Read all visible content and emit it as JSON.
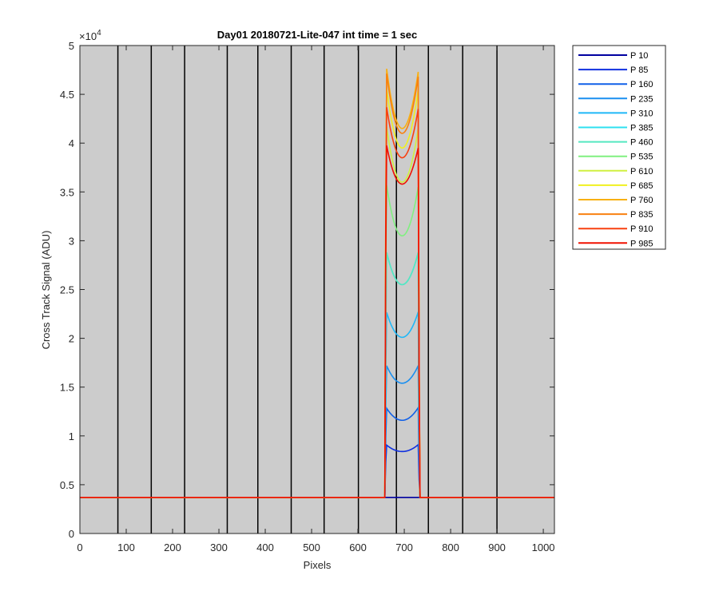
{
  "chart_data": {
    "type": "line",
    "title": "Day01 20180721-Lite-047 int time = 1 sec",
    "xlabel": "Pixels",
    "ylabel": "Cross Track Signal (ADU)",
    "exponent_label": "×10",
    "exponent_power": "4",
    "xlim": [
      0,
      1024
    ],
    "ylim": [
      0,
      50000
    ],
    "xticks": [
      0,
      100,
      200,
      300,
      400,
      500,
      600,
      700,
      800,
      900,
      1000
    ],
    "yticks": [
      0,
      5000,
      10000,
      15000,
      20000,
      25000,
      30000,
      35000,
      40000,
      45000,
      50000
    ],
    "ytick_labels": [
      "0",
      "0.5",
      "1",
      "1.5",
      "2",
      "2.5",
      "3",
      "3.5",
      "4",
      "4.5",
      "5"
    ],
    "vertical_lines_x": [
      82,
      154,
      226,
      318,
      384,
      456,
      527,
      601,
      683,
      752,
      826,
      900
    ],
    "background": "#cccccc",
    "legend_position": "outside-right",
    "baseline": 3700,
    "feature_x_range": [
      661,
      730
    ],
    "series": [
      {
        "name": "P 10",
        "color": "#0000a0",
        "left_peak": 3700,
        "dip": 3700,
        "right_peak": 3700
      },
      {
        "name": "P 85",
        "color": "#1030e0",
        "left_peak": 9100,
        "dip": 8400,
        "right_peak": 9100
      },
      {
        "name": "P 160",
        "color": "#1060e8",
        "left_peak": 12900,
        "dip": 11600,
        "right_peak": 12900
      },
      {
        "name": "P 235",
        "color": "#1a8ff0",
        "left_peak": 17300,
        "dip": 15400,
        "right_peak": 17200
      },
      {
        "name": "P 310",
        "color": "#1fb8f8",
        "left_peak": 22800,
        "dip": 20100,
        "right_peak": 22700
      },
      {
        "name": "P 385",
        "color": "#2ee0f0",
        "left_peak": 29000,
        "dip": 25500,
        "right_peak": 28800
      },
      {
        "name": "P 460",
        "color": "#55e8c0",
        "left_peak": 29000,
        "dip": 25500,
        "right_peak": 28800
      },
      {
        "name": "P 535",
        "color": "#80f080",
        "left_peak": 36000,
        "dip": 30500,
        "right_peak": 35500
      },
      {
        "name": "P 610",
        "color": "#d0f040",
        "left_peak": 42000,
        "dip": 36000,
        "right_peak": 41500
      },
      {
        "name": "P 685",
        "color": "#f0f020",
        "left_peak": 46000,
        "dip": 39500,
        "right_peak": 45500
      },
      {
        "name": "P 760",
        "color": "#f8b010",
        "left_peak": 48000,
        "dip": 41500,
        "right_peak": 47300
      },
      {
        "name": "P 835",
        "color": "#f88010",
        "left_peak": 47500,
        "dip": 41000,
        "right_peak": 46800
      },
      {
        "name": "P 910",
        "color": "#f84010",
        "left_peak": 44000,
        "dip": 38500,
        "right_peak": 43500
      },
      {
        "name": "P 985",
        "color": "#f01000",
        "left_peak": 40000,
        "dip": 35800,
        "right_peak": 39500
      }
    ]
  }
}
